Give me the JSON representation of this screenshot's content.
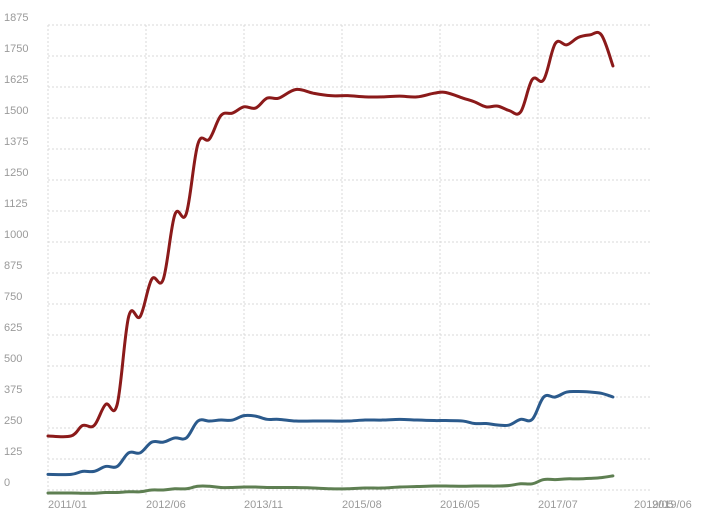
{
  "chart_data": {
    "type": "line",
    "title": "",
    "xlabel": "",
    "ylabel": "",
    "ylim": [
      0,
      1875
    ],
    "grid": true,
    "legend": "none",
    "y_ticks": [
      "0",
      "125",
      "250",
      "375",
      "500",
      "625",
      "750",
      "875",
      "1000",
      "1125",
      "1250",
      "1375",
      "1500",
      "1625",
      "1750",
      "1875"
    ],
    "x_ticks": [
      "2011/01",
      "2012/06",
      "2013/11",
      "2015/08",
      "2016/05",
      "2017/07",
      "2019/05",
      "2019/06"
    ],
    "series": [
      {
        "color": "#8b1a1a",
        "points": [
          [
            "2011/01",
            218
          ],
          [
            "2011/05",
            218
          ],
          [
            "2011/07",
            260
          ],
          [
            "2011/09",
            260
          ],
          [
            "2011/11",
            345
          ],
          [
            "2012/01",
            345
          ],
          [
            "2012/03",
            700
          ],
          [
            "2012/05",
            700
          ],
          [
            "2012/07",
            850
          ],
          [
            "2012/09",
            850
          ],
          [
            "2012/11",
            1110
          ],
          [
            "2013/01",
            1115
          ],
          [
            "2013/03",
            1395
          ],
          [
            "2013/05",
            1415
          ],
          [
            "2013/07",
            1510
          ],
          [
            "2013/09",
            1520
          ],
          [
            "2013/11",
            1545
          ],
          [
            "2014/01",
            1540
          ],
          [
            "2014/03",
            1580
          ],
          [
            "2014/05",
            1580
          ],
          [
            "2014/08",
            1615
          ],
          [
            "2014/11",
            1600
          ],
          [
            "2015/02",
            1590
          ],
          [
            "2015/05",
            1590
          ],
          [
            "2015/08",
            1585
          ],
          [
            "2015/11",
            1585
          ],
          [
            "2016/02",
            1588
          ],
          [
            "2016/05",
            1585
          ],
          [
            "2016/08",
            1600
          ],
          [
            "2016/10",
            1603
          ],
          [
            "2017/01",
            1580
          ],
          [
            "2017/03",
            1565
          ],
          [
            "2017/05",
            1545
          ],
          [
            "2017/07",
            1548
          ],
          [
            "2017/09",
            1530
          ],
          [
            "2017/11",
            1525
          ],
          [
            "2018/01",
            1655
          ],
          [
            "2018/03",
            1655
          ],
          [
            "2018/05",
            1800
          ],
          [
            "2018/07",
            1795
          ],
          [
            "2018/09",
            1825
          ],
          [
            "2018/11",
            1835
          ],
          [
            "2019/01",
            1835
          ],
          [
            "2019/03",
            1710
          ]
        ]
      },
      {
        "color": "#2b5a8c",
        "points": [
          [
            "2011/01",
            63
          ],
          [
            "2011/05",
            63
          ],
          [
            "2011/07",
            75
          ],
          [
            "2011/09",
            75
          ],
          [
            "2011/11",
            95
          ],
          [
            "2012/01",
            95
          ],
          [
            "2012/03",
            150
          ],
          [
            "2012/05",
            150
          ],
          [
            "2012/07",
            193
          ],
          [
            "2012/09",
            193
          ],
          [
            "2012/11",
            210
          ],
          [
            "2013/01",
            210
          ],
          [
            "2013/03",
            278
          ],
          [
            "2013/05",
            278
          ],
          [
            "2013/07",
            282
          ],
          [
            "2013/09",
            282
          ],
          [
            "2013/11",
            300
          ],
          [
            "2014/01",
            298
          ],
          [
            "2014/03",
            285
          ],
          [
            "2014/05",
            285
          ],
          [
            "2014/08",
            278
          ],
          [
            "2014/11",
            278
          ],
          [
            "2015/02",
            278
          ],
          [
            "2015/05",
            278
          ],
          [
            "2015/08",
            282
          ],
          [
            "2015/11",
            282
          ],
          [
            "2016/02",
            285
          ],
          [
            "2016/05",
            282
          ],
          [
            "2016/08",
            280
          ],
          [
            "2016/10",
            280
          ],
          [
            "2017/01",
            278
          ],
          [
            "2017/03",
            268
          ],
          [
            "2017/05",
            268
          ],
          [
            "2017/07",
            262
          ],
          [
            "2017/09",
            262
          ],
          [
            "2017/11",
            285
          ],
          [
            "2018/01",
            285
          ],
          [
            "2018/03",
            375
          ],
          [
            "2018/05",
            375
          ],
          [
            "2018/07",
            395
          ],
          [
            "2018/09",
            397
          ],
          [
            "2018/11",
            395
          ],
          [
            "2019/01",
            390
          ],
          [
            "2019/03",
            375
          ]
        ]
      },
      {
        "color": "#5e7f52",
        "points": [
          [
            "2011/01",
            -12
          ],
          [
            "2011/05",
            -12
          ],
          [
            "2011/07",
            -13
          ],
          [
            "2011/09",
            -13
          ],
          [
            "2011/11",
            -10
          ],
          [
            "2012/01",
            -10
          ],
          [
            "2012/03",
            -7
          ],
          [
            "2012/05",
            -7
          ],
          [
            "2012/07",
            0
          ],
          [
            "2012/09",
            0
          ],
          [
            "2012/11",
            5
          ],
          [
            "2013/01",
            5
          ],
          [
            "2013/03",
            15
          ],
          [
            "2013/05",
            15
          ],
          [
            "2013/07",
            10
          ],
          [
            "2013/09",
            10
          ],
          [
            "2013/11",
            12
          ],
          [
            "2014/01",
            12
          ],
          [
            "2014/03",
            10
          ],
          [
            "2014/05",
            10
          ],
          [
            "2014/08",
            10
          ],
          [
            "2014/11",
            8
          ],
          [
            "2015/02",
            5
          ],
          [
            "2015/05",
            5
          ],
          [
            "2015/08",
            8
          ],
          [
            "2015/11",
            8
          ],
          [
            "2016/02",
            12
          ],
          [
            "2016/05",
            14
          ],
          [
            "2016/08",
            16
          ],
          [
            "2016/10",
            16
          ],
          [
            "2017/01",
            15
          ],
          [
            "2017/03",
            16
          ],
          [
            "2017/05",
            16
          ],
          [
            "2017/07",
            16
          ],
          [
            "2017/09",
            18
          ],
          [
            "2017/11",
            25
          ],
          [
            "2018/01",
            25
          ],
          [
            "2018/03",
            42
          ],
          [
            "2018/05",
            42
          ],
          [
            "2018/07",
            45
          ],
          [
            "2018/09",
            45
          ],
          [
            "2018/11",
            47
          ],
          [
            "2019/01",
            50
          ],
          [
            "2019/03",
            57
          ]
        ]
      }
    ]
  }
}
